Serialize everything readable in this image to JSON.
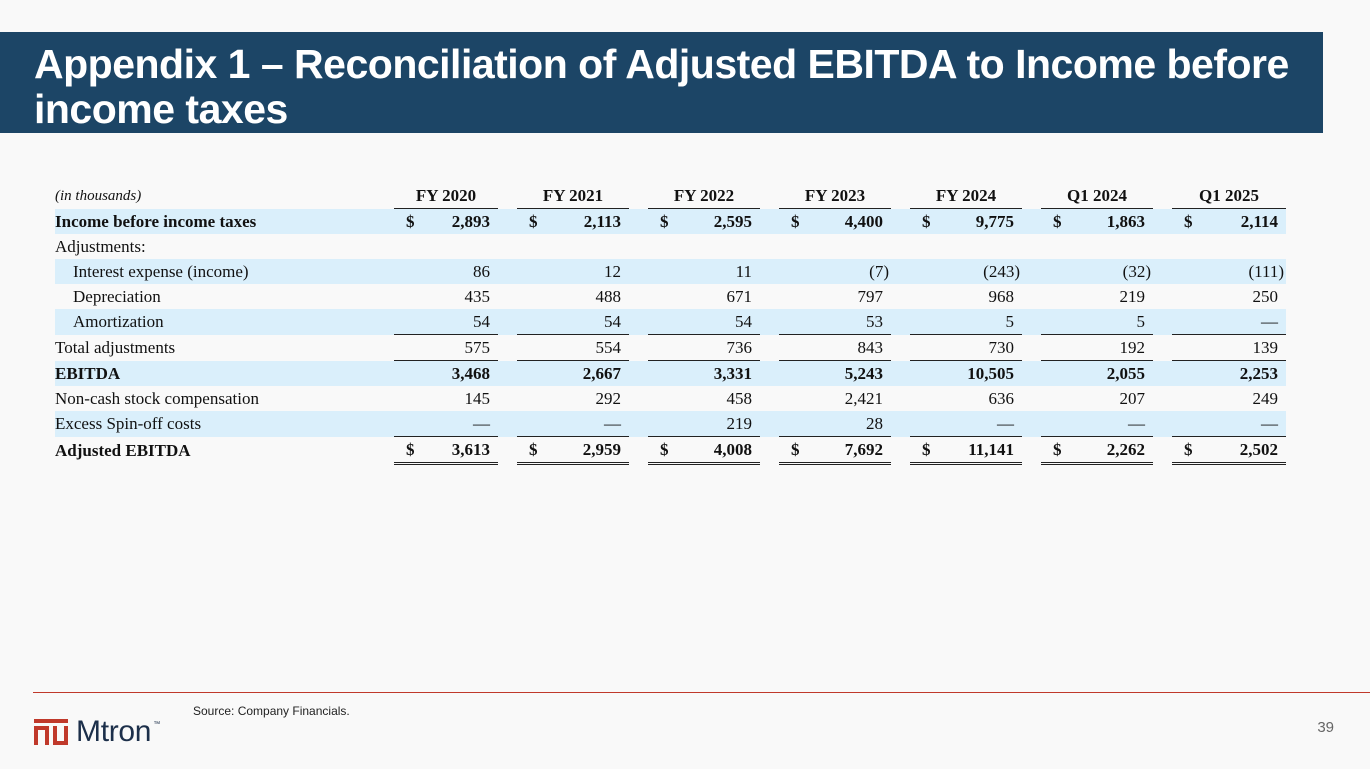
{
  "title": "Appendix 1 – Reconciliation of Adjusted EBITDA to Income before income taxes",
  "table": {
    "unit_label": "(in thousands)",
    "columns": [
      "FY 2020",
      "FY 2021",
      "FY 2022",
      "FY 2023",
      "FY 2024",
      "Q1 2024",
      "Q1 2025"
    ],
    "rows": [
      {
        "label": "Income before income taxes",
        "values": [
          "2,893",
          "2,113",
          "2,595",
          "4,400",
          "9,775",
          "1,863",
          "2,114"
        ],
        "currency": "$"
      },
      {
        "label": "Adjustments:",
        "values": []
      },
      {
        "label": "Interest expense (income)",
        "values": [
          "86",
          "12",
          "11",
          "(7)",
          "(243)",
          "(32)",
          "(111)"
        ]
      },
      {
        "label": "Depreciation",
        "values": [
          "435",
          "488",
          "671",
          "797",
          "968",
          "219",
          "250"
        ]
      },
      {
        "label": "Amortization",
        "values": [
          "54",
          "54",
          "54",
          "53",
          "5",
          "5",
          "—"
        ]
      },
      {
        "label": "Total adjustments",
        "values": [
          "575",
          "554",
          "736",
          "843",
          "730",
          "192",
          "139"
        ]
      },
      {
        "label": "EBITDA",
        "values": [
          "3,468",
          "2,667",
          "3,331",
          "5,243",
          "10,505",
          "2,055",
          "2,253"
        ]
      },
      {
        "label": "Non-cash stock compensation",
        "values": [
          "145",
          "292",
          "458",
          "2,421",
          "636",
          "207",
          "249"
        ]
      },
      {
        "label": "Excess Spin-off costs",
        "values": [
          "—",
          "—",
          "219",
          "28",
          "—",
          "—",
          "—"
        ]
      },
      {
        "label": "Adjusted EBITDA",
        "values": [
          "3,613",
          "2,959",
          "4,008",
          "7,692",
          "11,141",
          "2,262",
          "2,502"
        ],
        "currency": "$"
      }
    ]
  },
  "footer": {
    "source": "Source: Company Financials.",
    "page_number": "39",
    "logo_text": "Mtron",
    "logo_tm": "™"
  },
  "colors": {
    "title_bar": "#1c4566",
    "row_highlight": "#daeffb",
    "footer_rule": "#c0392b",
    "logo": "#c0392b"
  }
}
